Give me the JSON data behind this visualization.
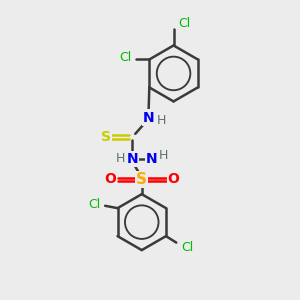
{
  "background_color": "#ececec",
  "atom_colors": {
    "C": "#3a3a3a",
    "N": "#0000ee",
    "S_thio": "#cccc00",
    "S_sulfonyl": "#ffaa00",
    "O": "#ff0000",
    "Cl": "#00bb00",
    "H_text": "#607070"
  },
  "bond_color": "#3a3a3a",
  "bond_width": 1.8,
  "figure_size": [
    3.0,
    3.0
  ],
  "dpi": 100,
  "xlim": [
    0,
    10
  ],
  "ylim": [
    0,
    10
  ]
}
